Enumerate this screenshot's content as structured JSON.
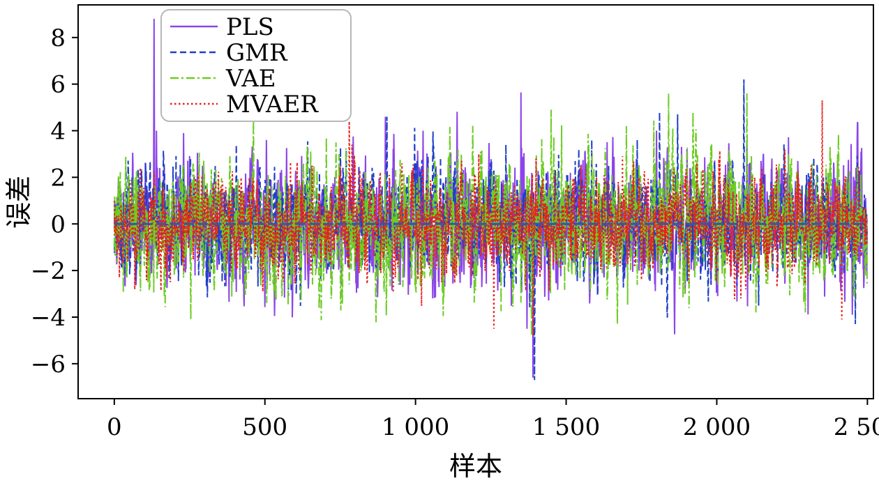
{
  "chart_data": {
    "type": "line",
    "title": "",
    "xlabel": "样本",
    "ylabel": "误差",
    "xlim": [
      -120,
      2520
    ],
    "ylim": [
      -7.5,
      9.4
    ],
    "xticks": [
      0,
      500,
      1000,
      1500,
      2000,
      2500
    ],
    "xtick_labels": [
      "0",
      "500",
      "1 000",
      "1 500",
      "2 000",
      "2 500"
    ],
    "yticks": [
      -6,
      -4,
      -2,
      0,
      2,
      4,
      6,
      8
    ],
    "ytick_labels": [
      "−6",
      "−4",
      "−2",
      "0",
      "2",
      "4",
      "6",
      "8"
    ],
    "grid": false,
    "legend_position": "top-left",
    "x_count": 2500,
    "series": [
      {
        "name": "PLS",
        "color": "#8b45e8",
        "style": "solid",
        "seed": 11,
        "noise": 0.85,
        "key_points": [
          [
            132,
            8.8
          ],
          [
            140,
            4.0
          ],
          [
            230,
            3.9
          ],
          [
            505,
            3.6
          ],
          [
            1025,
            4.0
          ],
          [
            1390,
            -6.6
          ],
          [
            1370,
            -4.5
          ],
          [
            1800,
            4.0
          ],
          [
            2100,
            3.6
          ],
          [
            2450,
            -3.9
          ],
          [
            900,
            4.6
          ]
        ]
      },
      {
        "name": "GMR",
        "color": "#1f3fc8",
        "style": "dashed",
        "seed": 23,
        "noise": 0.75,
        "key_points": [
          [
            405,
            3.4
          ],
          [
            770,
            3.2
          ],
          [
            905,
            4.6
          ],
          [
            1300,
            3.4
          ],
          [
            1395,
            -6.7
          ],
          [
            1810,
            4.8
          ],
          [
            1870,
            4.7
          ],
          [
            2090,
            6.2
          ],
          [
            2460,
            -4.3
          ],
          [
            1005,
            2.7
          ]
        ]
      },
      {
        "name": "VAE",
        "color": "#6dcc24",
        "style": "dashdot",
        "seed": 37,
        "noise": 0.9,
        "key_points": [
          [
            620,
            -3.3
          ],
          [
            1220,
            3.2
          ],
          [
            1385,
            -4.8
          ],
          [
            1450,
            4.9
          ],
          [
            1840,
            5.6
          ],
          [
            2100,
            5.6
          ],
          [
            2130,
            -3.8
          ],
          [
            1700,
            4.2
          ],
          [
            780,
            -2.6
          ]
        ]
      },
      {
        "name": "MVAER",
        "color": "#e8201a",
        "style": "dotted",
        "seed": 53,
        "noise": 0.7,
        "key_points": [
          [
            780,
            4.4
          ],
          [
            1260,
            -4.5
          ],
          [
            1390,
            -4.8
          ],
          [
            2350,
            5.3
          ],
          [
            2415,
            -4.1
          ],
          [
            2080,
            -3.2
          ],
          [
            1210,
            3.0
          ],
          [
            955,
            2.6
          ]
        ]
      }
    ]
  }
}
